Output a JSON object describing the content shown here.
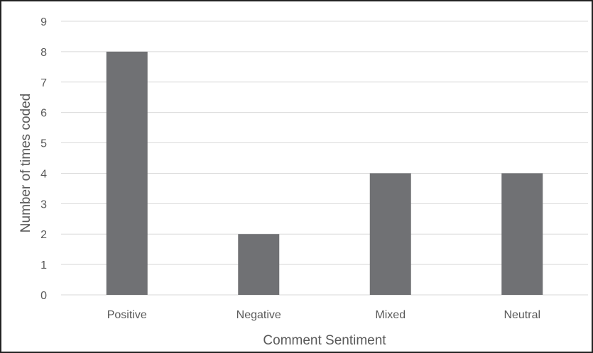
{
  "chart_data": {
    "type": "bar",
    "title": "",
    "categories": [
      "Positive",
      "Negative",
      "Mixed",
      "Neutral"
    ],
    "values": [
      8,
      2,
      4,
      4
    ],
    "xlabel": "Comment Sentiment",
    "ylabel": "Number of times coded",
    "ylim": [
      0,
      9
    ],
    "yticks": [
      0,
      1,
      2,
      3,
      4,
      5,
      6,
      7,
      8,
      9
    ],
    "grid": true,
    "legend": "none",
    "colors": {
      "bar": "#707174",
      "grid": "#d9d9d9",
      "text": "#595959",
      "border": "#222222"
    }
  }
}
